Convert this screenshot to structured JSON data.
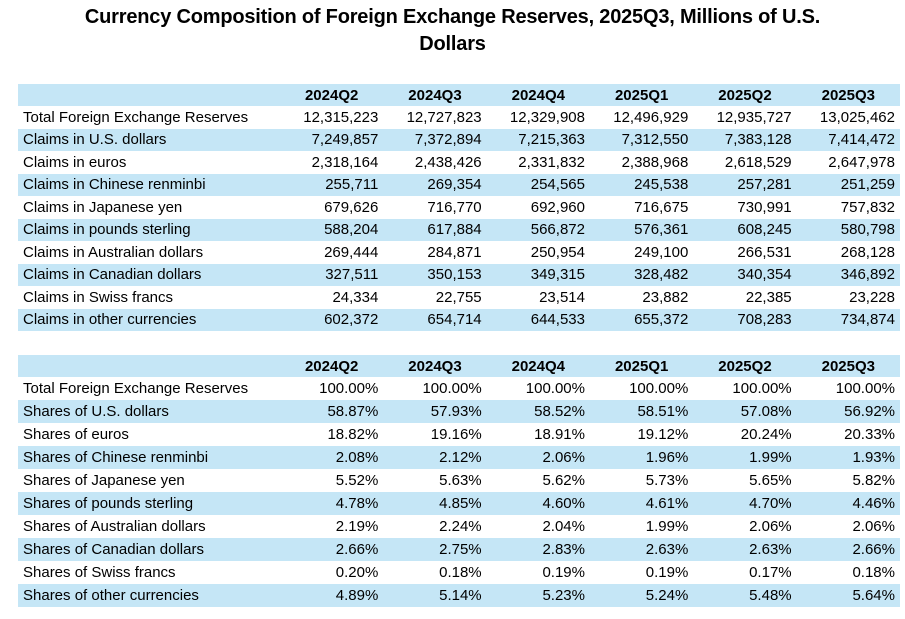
{
  "title": {
    "full": "Currency Composition of Foreign Exchange Reserves, 2025Q3, Millions of U.S. Dollars",
    "line1": "Currency Composition of Foreign Exchange Reserves, 2025Q3, Millions of U.S.",
    "line2": "Dollars"
  },
  "colors": {
    "row_band": "#C5E6F6",
    "text": "#000000",
    "background": "#FFFFFF"
  },
  "tables": [
    {
      "name": "reserves-millions-table",
      "columns": [
        "2024Q2",
        "2024Q3",
        "2024Q4",
        "2025Q1",
        "2025Q2",
        "2025Q3"
      ],
      "rows": [
        {
          "label": "Total Foreign Exchange Reserves",
          "values": [
            "12,315,223",
            "12,727,823",
            "12,329,908",
            "12,496,929",
            "12,935,727",
            "13,025,462"
          ]
        },
        {
          "label": "Claims in U.S. dollars",
          "values": [
            "7,249,857",
            "7,372,894",
            "7,215,363",
            "7,312,550",
            "7,383,128",
            "7,414,472"
          ]
        },
        {
          "label": "Claims in euros",
          "values": [
            "2,318,164",
            "2,438,426",
            "2,331,832",
            "2,388,968",
            "2,618,529",
            "2,647,978"
          ]
        },
        {
          "label": "Claims in Chinese renminbi",
          "values": [
            "255,711",
            "269,354",
            "254,565",
            "245,538",
            "257,281",
            "251,259"
          ]
        },
        {
          "label": "Claims in Japanese yen",
          "values": [
            "679,626",
            "716,770",
            "692,960",
            "716,675",
            "730,991",
            "757,832"
          ]
        },
        {
          "label": "Claims in pounds sterling",
          "values": [
            "588,204",
            "617,884",
            "566,872",
            "576,361",
            "608,245",
            "580,798"
          ]
        },
        {
          "label": "Claims in Australian dollars",
          "values": [
            "269,444",
            "284,871",
            "250,954",
            "249,100",
            "266,531",
            "268,128"
          ]
        },
        {
          "label": "Claims in Canadian dollars",
          "values": [
            "327,511",
            "350,153",
            "349,315",
            "328,482",
            "340,354",
            "346,892"
          ]
        },
        {
          "label": "Claims in Swiss francs",
          "values": [
            "24,334",
            "22,755",
            "23,514",
            "23,882",
            "22,385",
            "23,228"
          ]
        },
        {
          "label": "Claims in other currencies",
          "values": [
            "602,372",
            "654,714",
            "644,533",
            "655,372",
            "708,283",
            "734,874"
          ]
        }
      ]
    },
    {
      "name": "reserves-shares-table",
      "columns": [
        "2024Q2",
        "2024Q3",
        "2024Q4",
        "2025Q1",
        "2025Q2",
        "2025Q3"
      ],
      "rows": [
        {
          "label": "Total Foreign Exchange Reserves",
          "values": [
            "100.00%",
            "100.00%",
            "100.00%",
            "100.00%",
            "100.00%",
            "100.00%"
          ]
        },
        {
          "label": "Shares of U.S. dollars",
          "values": [
            "58.87%",
            "57.93%",
            "58.52%",
            "58.51%",
            "57.08%",
            "56.92%"
          ]
        },
        {
          "label": "Shares of euros",
          "values": [
            "18.82%",
            "19.16%",
            "18.91%",
            "19.12%",
            "20.24%",
            "20.33%"
          ]
        },
        {
          "label": "Shares of Chinese renminbi",
          "values": [
            "2.08%",
            "2.12%",
            "2.06%",
            "1.96%",
            "1.99%",
            "1.93%"
          ]
        },
        {
          "label": "Shares of Japanese yen",
          "values": [
            "5.52%",
            "5.63%",
            "5.62%",
            "5.73%",
            "5.65%",
            "5.82%"
          ]
        },
        {
          "label": "Shares of pounds sterling",
          "values": [
            "4.78%",
            "4.85%",
            "4.60%",
            "4.61%",
            "4.70%",
            "4.46%"
          ]
        },
        {
          "label": "Shares of Australian dollars",
          "values": [
            "2.19%",
            "2.24%",
            "2.04%",
            "1.99%",
            "2.06%",
            "2.06%"
          ]
        },
        {
          "label": "Shares of Canadian dollars",
          "values": [
            "2.66%",
            "2.75%",
            "2.83%",
            "2.63%",
            "2.63%",
            "2.66%"
          ]
        },
        {
          "label": "Shares of Swiss francs",
          "values": [
            "0.20%",
            "0.18%",
            "0.19%",
            "0.19%",
            "0.17%",
            "0.18%"
          ]
        },
        {
          "label": "Shares of other currencies",
          "values": [
            "4.89%",
            "5.14%",
            "5.23%",
            "5.24%",
            "5.48%",
            "5.64%"
          ]
        }
      ]
    }
  ]
}
